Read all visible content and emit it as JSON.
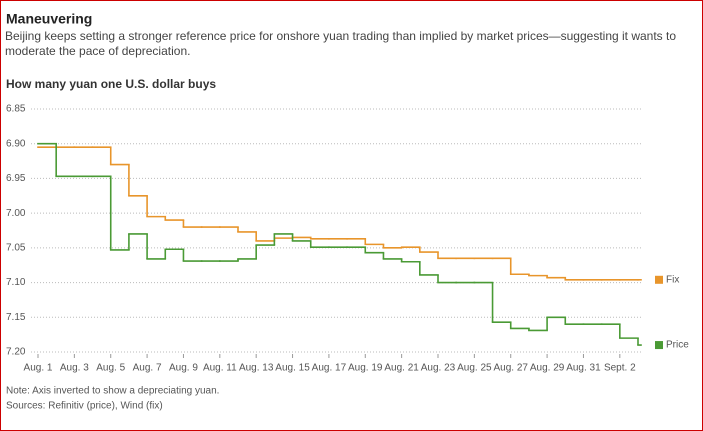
{
  "chart_data": {
    "type": "step-line",
    "title": "Maneuvering",
    "subtitle": "Beijing keeps setting a stronger reference price for onshore yuan trading than implied by market prices—suggesting it wants to moderate the pace of depreciation.",
    "y_label": "How many yuan one U.S. dollar buys",
    "notes": [
      "Note: Axis inverted to show a depreciating yuan.",
      "Sources: Refinitiv (price), Wind (fix)"
    ],
    "categories": [
      "Aug. 1",
      null,
      "Aug. 3",
      null,
      "Aug. 5",
      null,
      "Aug. 7",
      null,
      "Aug. 9",
      null,
      "Aug. 11",
      null,
      "Aug. 13",
      null,
      "Aug. 15",
      null,
      "Aug. 17",
      null,
      "Aug. 19",
      null,
      "Aug. 21",
      null,
      "Aug. 23",
      null,
      "Aug. 25",
      null,
      "Aug. 27",
      null,
      "Aug. 29",
      null,
      "Aug. 31",
      null,
      "Sept. 2",
      null
    ],
    "series": [
      {
        "name": "Fix",
        "color": "#e8952b",
        "values": [
          6.905,
          6.905,
          6.905,
          6.905,
          6.93,
          6.975,
          7.005,
          7.01,
          7.02,
          7.02,
          7.02,
          7.027,
          7.04,
          7.036,
          7.035,
          7.037,
          7.037,
          7.037,
          7.045,
          7.05,
          7.049,
          7.056,
          7.065,
          7.065,
          7.065,
          7.065,
          7.088,
          7.09,
          7.093,
          7.096,
          7.096,
          7.096,
          7.096,
          7.096
        ]
      },
      {
        "name": "Price",
        "color": "#4a9a35",
        "values": [
          6.9,
          6.947,
          6.947,
          6.947,
          7.053,
          7.03,
          7.066,
          7.052,
          7.069,
          7.069,
          7.069,
          7.066,
          7.046,
          7.03,
          7.04,
          7.049,
          7.049,
          7.049,
          7.057,
          7.066,
          7.07,
          7.089,
          7.1,
          7.1,
          7.1,
          7.157,
          7.166,
          7.169,
          7.15,
          7.16,
          7.16,
          7.16,
          7.18,
          7.19
        ]
      }
    ],
    "ylim": [
      6.85,
      7.2
    ],
    "yticks": [
      6.85,
      {
        "value": 6.9,
        "label": "6.90"
      },
      6.95,
      {
        "value": 7.0,
        "label": "7.00"
      },
      7.05,
      {
        "value": 7.1,
        "label": "7.10"
      },
      7.15,
      {
        "value": 7.2,
        "label": "7.20"
      }
    ],
    "y_inverted": true,
    "grid": true,
    "legend": "right"
  }
}
